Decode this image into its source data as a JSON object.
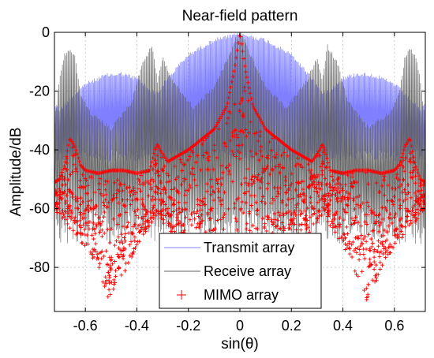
{
  "chart_data": {
    "type": "line",
    "title": "Near-field pattern",
    "xlabel": "sin(θ)",
    "ylabel": "Amplitude/dB",
    "xlim": [
      -0.72,
      0.72
    ],
    "ylim": [
      -95,
      0
    ],
    "xticks": [
      -0.6,
      -0.4,
      -0.2,
      0,
      0.2,
      0.4,
      0.6
    ],
    "xtick_labels": [
      "-0.6",
      "-0.4",
      "-0.2",
      "0",
      "0.2",
      "0.4",
      "0.6"
    ],
    "yticks": [
      0,
      -20,
      -40,
      -60,
      -80
    ],
    "ytick_labels": [
      "0",
      "-20",
      "-40",
      "-60",
      "-80"
    ],
    "grid": true,
    "legend_position": "bottom-center",
    "colors": {
      "transmit": "#8080ff",
      "receive": "#606060",
      "mimo": "#ff0000"
    },
    "series": [
      {
        "name": "Transmit array",
        "style": "line",
        "envelope_x": [
          -0.72,
          -0.7,
          -0.66,
          -0.6,
          -0.52,
          -0.46,
          -0.4,
          -0.35,
          -0.32,
          -0.28,
          -0.2,
          -0.1,
          0,
          0.1,
          0.2,
          0.28,
          0.32,
          0.35,
          0.4,
          0.46,
          0.52,
          0.6,
          0.66,
          0.7,
          0.72
        ],
        "envelope_y": [
          -24,
          -26,
          -22,
          -17,
          -14,
          -13.5,
          -15,
          -19,
          -20,
          -15,
          -7,
          -2,
          0,
          -2,
          -7,
          -15,
          -20,
          -19,
          -15,
          -13.5,
          -14,
          -17,
          -22,
          -26,
          -24
        ],
        "floor_y": -40
      },
      {
        "name": "Receive array",
        "style": "line",
        "envelope_x": [
          -0.72,
          -0.7,
          -0.68,
          -0.66,
          -0.64,
          -0.62,
          -0.58,
          -0.5,
          -0.42,
          -0.38,
          -0.34,
          -0.32,
          -0.3,
          -0.26,
          -0.18,
          -0.1,
          -0.04,
          -0.02,
          0,
          0.02,
          0.04,
          0.1,
          0.18,
          0.26,
          0.3,
          0.32,
          0.34,
          0.38,
          0.42,
          0.5,
          0.58,
          0.62,
          0.64,
          0.66,
          0.68,
          0.7,
          0.72
        ],
        "envelope_y": [
          -30,
          -15,
          -7,
          -5,
          -8,
          -20,
          -27,
          -32,
          -23,
          -10,
          -4,
          -16,
          -8,
          -16,
          -25,
          -18,
          -7,
          -2,
          0,
          -2,
          -7,
          -18,
          -25,
          -16,
          -8,
          -16,
          -4,
          -10,
          -23,
          -32,
          -27,
          -20,
          -8,
          -5,
          -7,
          -15,
          -30
        ],
        "floor_y": -60
      },
      {
        "name": "MIMO array",
        "style": "markers",
        "envelope_x": [
          -0.72,
          -0.7,
          -0.68,
          -0.66,
          -0.64,
          -0.62,
          -0.6,
          -0.55,
          -0.5,
          -0.45,
          -0.4,
          -0.35,
          -0.33,
          -0.32,
          -0.31,
          -0.28,
          -0.2,
          -0.1,
          -0.05,
          -0.02,
          0,
          0.02,
          0.05,
          0.1,
          0.2,
          0.28,
          0.31,
          0.32,
          0.33,
          0.35,
          0.4,
          0.45,
          0.5,
          0.55,
          0.6,
          0.62,
          0.64,
          0.66,
          0.68,
          0.7,
          0.72
        ],
        "envelope_y": [
          -51,
          -50,
          -45,
          -36,
          -39,
          -45,
          -47,
          -48,
          -47,
          -47,
          -48,
          -47,
          -40,
          -38,
          -40,
          -44,
          -40,
          -33,
          -25,
          -12,
          0,
          -12,
          -25,
          -33,
          -40,
          -44,
          -40,
          -38,
          -40,
          -47,
          -48,
          -47,
          -47,
          -48,
          -47,
          -45,
          -39,
          -36,
          -45,
          -50,
          -51
        ],
        "floor_x": [
          -0.72,
          -0.65,
          -0.55,
          -0.5,
          -0.45,
          -0.38,
          -0.32,
          -0.25,
          -0.15,
          -0.05,
          0,
          0.05,
          0.15,
          0.25,
          0.32,
          0.38,
          0.45,
          0.5,
          0.55,
          0.65,
          0.72
        ],
        "floor_y": [
          -60,
          -68,
          -80,
          -94,
          -82,
          -70,
          -62,
          -72,
          -76,
          -80,
          -85,
          -80,
          -76,
          -72,
          -62,
          -70,
          -82,
          -94,
          -80,
          -68,
          -60
        ]
      }
    ]
  }
}
